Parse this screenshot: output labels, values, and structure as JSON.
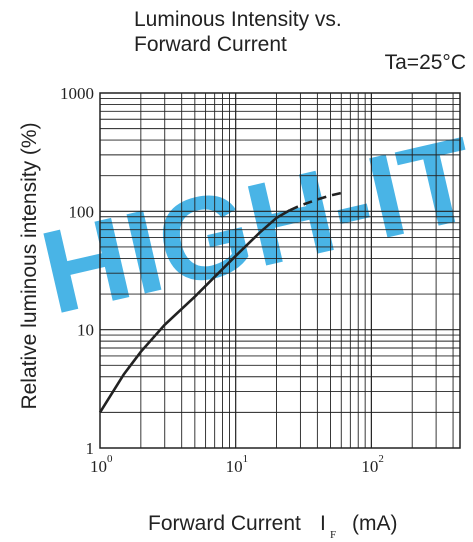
{
  "watermark": {
    "text": "HIGH-IT",
    "color": "#2aa8e2"
  },
  "chart_data": {
    "type": "line",
    "title_lines": [
      "Luminous Intensity vs.",
      "Forward Current"
    ],
    "condition": "Ta=25°C",
    "xlabel": "Forward Current",
    "xlabel_symbol": "I",
    "xlabel_subscript": "F",
    "xlabel_unit": "(mA)",
    "ylabel": "Relative luminous intensity (%)",
    "x_scale": "log",
    "y_scale": "log",
    "xlim": [
      1,
      450
    ],
    "ylim": [
      1,
      1000
    ],
    "x_ticks": [
      {
        "base": "10",
        "exp": "0",
        "value": 1
      },
      {
        "base": "10",
        "exp": "1",
        "value": 10
      },
      {
        "base": "10",
        "exp": "2",
        "value": 100
      }
    ],
    "y_ticks": [
      {
        "label": "1",
        "value": 1
      },
      {
        "label": "10",
        "value": 10
      },
      {
        "label": "100",
        "value": 100
      },
      {
        "label": "1000",
        "value": 1000
      }
    ],
    "grid": true,
    "series": [
      {
        "style": "solid",
        "color": "#222222",
        "points": [
          [
            1,
            2
          ],
          [
            1.5,
            4.2
          ],
          [
            2,
            6.5
          ],
          [
            3,
            11
          ],
          [
            5,
            19
          ],
          [
            7,
            28
          ],
          [
            10,
            42
          ],
          [
            15,
            66
          ],
          [
            20,
            88
          ],
          [
            25,
            102
          ]
        ]
      },
      {
        "style": "dashed",
        "color": "#222222",
        "points": [
          [
            25,
            102
          ],
          [
            30,
            112
          ],
          [
            40,
            126
          ],
          [
            50,
            136
          ],
          [
            60,
            143
          ],
          [
            65,
            145
          ]
        ]
      }
    ]
  }
}
